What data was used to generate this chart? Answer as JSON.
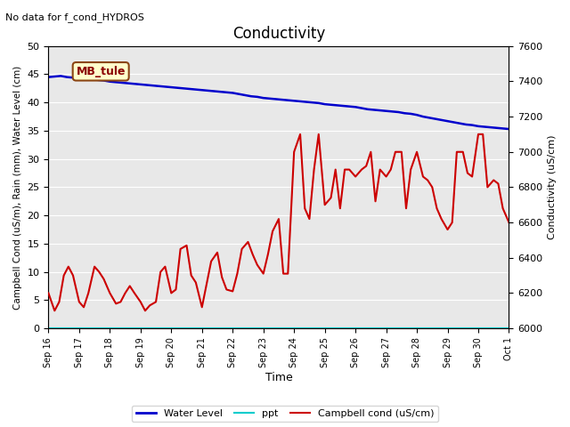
{
  "title": "Conductivity",
  "top_left_text": "No data for f_cond_HYDROS",
  "ylabel_left": "Campbell Cond (uS/m), Rain (mm), Water Level (cm)",
  "ylabel_right": "Conductivity (uS/cm)",
  "xlabel": "Time",
  "ylim_left": [
    0,
    50
  ],
  "ylim_right": [
    6000,
    7600
  ],
  "bg_color": "#e8e8e8",
  "site_label": "MB_tule",
  "xtick_labels": [
    "Sep 16",
    "Sep 17",
    "Sep 18",
    "Sep 19",
    "Sep 20",
    "Sep 21",
    "Sep 22",
    "Sep 23",
    "Sep 24",
    "Sep 25",
    "Sep 26",
    "Sep 27",
    "Sep 28",
    "Sep 29",
    "Sep 30",
    "Oct 1"
  ],
  "water_level_x": [
    0,
    0.2,
    0.4,
    0.6,
    0.8,
    1.0,
    1.2,
    1.4,
    1.6,
    1.8,
    2.0,
    2.2,
    2.4,
    2.6,
    2.8,
    3.0,
    3.2,
    3.4,
    3.6,
    3.8,
    4.0,
    4.2,
    4.4,
    4.6,
    4.8,
    5.0,
    5.2,
    5.4,
    5.6,
    5.8,
    6.0,
    6.2,
    6.4,
    6.6,
    6.8,
    7.0,
    7.2,
    7.4,
    7.6,
    7.8,
    8.0,
    8.2,
    8.4,
    8.6,
    8.8,
    9.0,
    9.2,
    9.4,
    9.6,
    9.8,
    10.0,
    10.2,
    10.4,
    10.6,
    10.8,
    11.0,
    11.2,
    11.4,
    11.6,
    11.8,
    12.0,
    12.2,
    12.4,
    12.6,
    12.8,
    13.0,
    13.2,
    13.4,
    13.6,
    13.8,
    14.0,
    14.2,
    14.4,
    14.6,
    14.8,
    15.0
  ],
  "water_level_y": [
    44.5,
    44.6,
    44.7,
    44.5,
    44.4,
    44.3,
    44.2,
    44.1,
    44.0,
    43.9,
    43.7,
    43.6,
    43.5,
    43.4,
    43.3,
    43.2,
    43.1,
    43.0,
    42.9,
    42.8,
    42.7,
    42.6,
    42.5,
    42.4,
    42.3,
    42.2,
    42.1,
    42.0,
    41.9,
    41.8,
    41.7,
    41.5,
    41.3,
    41.1,
    41.0,
    40.8,
    40.7,
    40.6,
    40.5,
    40.4,
    40.3,
    40.2,
    40.1,
    40.0,
    39.9,
    39.7,
    39.6,
    39.5,
    39.4,
    39.3,
    39.2,
    39.0,
    38.8,
    38.7,
    38.6,
    38.5,
    38.4,
    38.3,
    38.1,
    38.0,
    37.8,
    37.5,
    37.3,
    37.1,
    36.9,
    36.7,
    36.5,
    36.3,
    36.1,
    36.0,
    35.8,
    35.7,
    35.6,
    35.5,
    35.4,
    35.3
  ],
  "campbell_x": [
    0,
    0.2,
    0.35,
    0.5,
    0.65,
    0.8,
    1.0,
    1.15,
    1.3,
    1.5,
    1.65,
    1.8,
    2.0,
    2.2,
    2.35,
    2.5,
    2.65,
    2.8,
    3.0,
    3.15,
    3.3,
    3.5,
    3.65,
    3.8,
    4.0,
    4.15,
    4.3,
    4.5,
    4.65,
    4.8,
    5.0,
    5.15,
    5.3,
    5.5,
    5.65,
    5.8,
    6.0,
    6.15,
    6.3,
    6.5,
    6.65,
    6.8,
    7.0,
    7.15,
    7.3,
    7.5,
    7.65,
    7.8,
    8.0,
    8.2,
    8.35,
    8.5,
    8.65,
    8.8,
    9.0,
    9.2,
    9.35,
    9.5,
    9.65,
    9.8,
    10.0,
    10.2,
    10.35,
    10.5,
    10.65,
    10.8,
    11.0,
    11.15,
    11.3,
    11.5,
    11.65,
    11.8,
    12.0,
    12.2,
    12.35,
    12.5,
    12.65,
    12.8,
    13.0,
    13.15,
    13.3,
    13.5,
    13.65,
    13.8,
    14.0,
    14.15,
    14.3,
    14.5,
    14.65,
    14.8,
    15.0
  ],
  "campbell_y": [
    6200,
    6100,
    6150,
    6300,
    6350,
    6300,
    6150,
    6120,
    6200,
    6350,
    6320,
    6280,
    6200,
    6140,
    6150,
    6200,
    6240,
    6200,
    6150,
    6100,
    6130,
    6150,
    6320,
    6350,
    6200,
    6220,
    6450,
    6470,
    6300,
    6260,
    6120,
    6250,
    6380,
    6430,
    6290,
    6220,
    6210,
    6310,
    6450,
    6490,
    6420,
    6360,
    6310,
    6420,
    6550,
    6620,
    6310,
    6310,
    7000,
    7100,
    6680,
    6620,
    6900,
    7100,
    6700,
    6740,
    6900,
    6680,
    6900,
    6900,
    6860,
    6900,
    6920,
    7000,
    6720,
    6900,
    6860,
    6900,
    7000,
    7000,
    6680,
    6900,
    7000,
    6860,
    6840,
    6800,
    6680,
    6620,
    6560,
    6600,
    7000,
    7000,
    6880,
    6860,
    7100,
    7100,
    6800,
    6840,
    6820,
    6680,
    6600
  ],
  "water_color": "#0000cc",
  "campbell_color": "#cc0000",
  "ppt_color": "#00cccc",
  "grid_color": "#ffffff",
  "legend_labels": [
    "Water Level",
    "ppt",
    "Campbell cond (uS/cm)"
  ]
}
